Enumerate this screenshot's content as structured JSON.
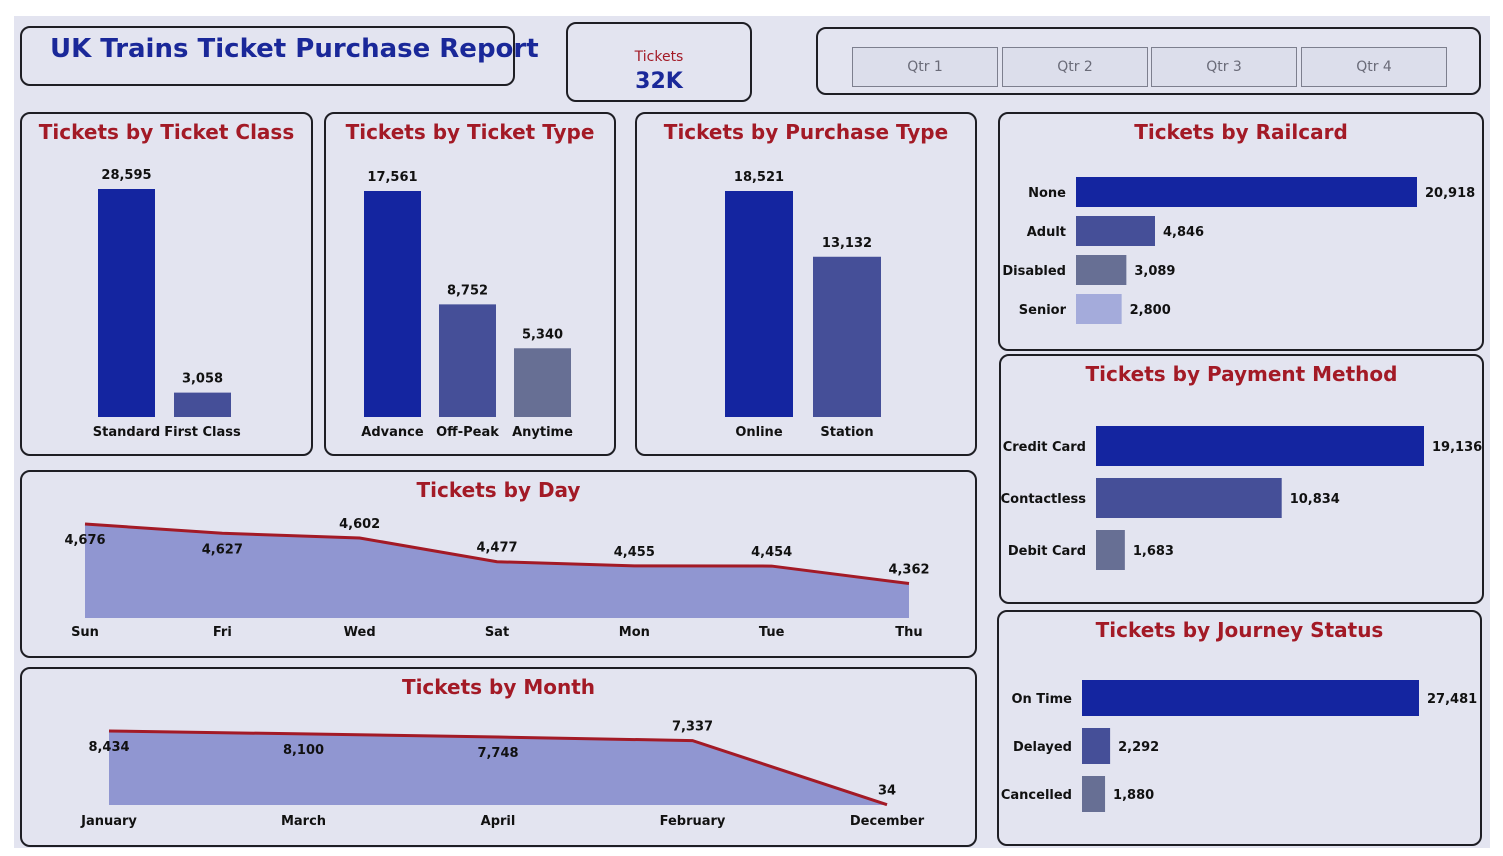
{
  "header": {
    "title": "UK Trains Ticket Purchase Report"
  },
  "kpi": {
    "label": "Tickets",
    "value": "32K"
  },
  "slicer": {
    "options": [
      "Qtr 1",
      "Qtr 2",
      "Qtr 3",
      "Qtr 4"
    ]
  },
  "colors": {
    "primary": "#1425a0",
    "secondary": "#454f98",
    "tertiary": "#676f94",
    "quaternary": "#a4abdb",
    "area_fill": "#9096d1",
    "line": "#a31a26",
    "title": "#a31a26",
    "background": "#e3e4f0"
  },
  "chart_data": [
    {
      "id": "ticket-class",
      "type": "bar",
      "title": "Tickets by Ticket Class",
      "categories": [
        "Standard",
        "First Class"
      ],
      "values": [
        28595,
        3058
      ],
      "labels": [
        "28,595",
        "3,058"
      ]
    },
    {
      "id": "ticket-type",
      "type": "bar",
      "title": "Tickets by Ticket Type",
      "categories": [
        "Advance",
        "Off-Peak",
        "Anytime"
      ],
      "values": [
        17561,
        8752,
        5340
      ],
      "labels": [
        "17,561",
        "8,752",
        "5,340"
      ]
    },
    {
      "id": "purchase-type",
      "type": "bar",
      "title": "Tickets by Purchase Type",
      "categories": [
        "Online",
        "Station"
      ],
      "values": [
        18521,
        13132
      ],
      "labels": [
        "18,521",
        "13,132"
      ]
    },
    {
      "id": "railcard",
      "type": "bar",
      "orientation": "horizontal",
      "title": "Tickets by Railcard",
      "categories": [
        "None",
        "Adult",
        "Disabled",
        "Senior"
      ],
      "values": [
        20918,
        4846,
        3089,
        2800
      ],
      "labels": [
        "20,918",
        "4,846",
        "3,089",
        "2,800"
      ]
    },
    {
      "id": "payment-method",
      "type": "bar",
      "orientation": "horizontal",
      "title": "Tickets by Payment Method",
      "categories": [
        "Credit Card",
        "Contactless",
        "Debit Card"
      ],
      "values": [
        19136,
        10834,
        1683
      ],
      "labels": [
        "19,136",
        "10,834",
        "1,683"
      ]
    },
    {
      "id": "journey-status",
      "type": "bar",
      "orientation": "horizontal",
      "title": "Tickets by Journey Status",
      "categories": [
        "On Time",
        "Delayed",
        "Cancelled"
      ],
      "values": [
        27481,
        2292,
        1880
      ],
      "labels": [
        "27,481",
        "2,292",
        "1,880"
      ]
    },
    {
      "id": "day",
      "type": "area",
      "title": "Tickets by Day",
      "categories": [
        "Sun",
        "Fri",
        "Wed",
        "Sat",
        "Mon",
        "Tue",
        "Thu"
      ],
      "values": [
        4676,
        4627,
        4602,
        4477,
        4455,
        4454,
        4362
      ],
      "labels": [
        "4,676",
        "4,627",
        "4,602",
        "4,477",
        "4,455",
        "4,454",
        "4,362"
      ]
    },
    {
      "id": "month",
      "type": "area",
      "title": "Tickets by Month",
      "categories": [
        "January",
        "March",
        "April",
        "February",
        "December"
      ],
      "values": [
        8434,
        8100,
        7748,
        7337,
        34
      ],
      "labels": [
        "8,434",
        "8,100",
        "7,748",
        "7,337",
        "34"
      ]
    }
  ]
}
